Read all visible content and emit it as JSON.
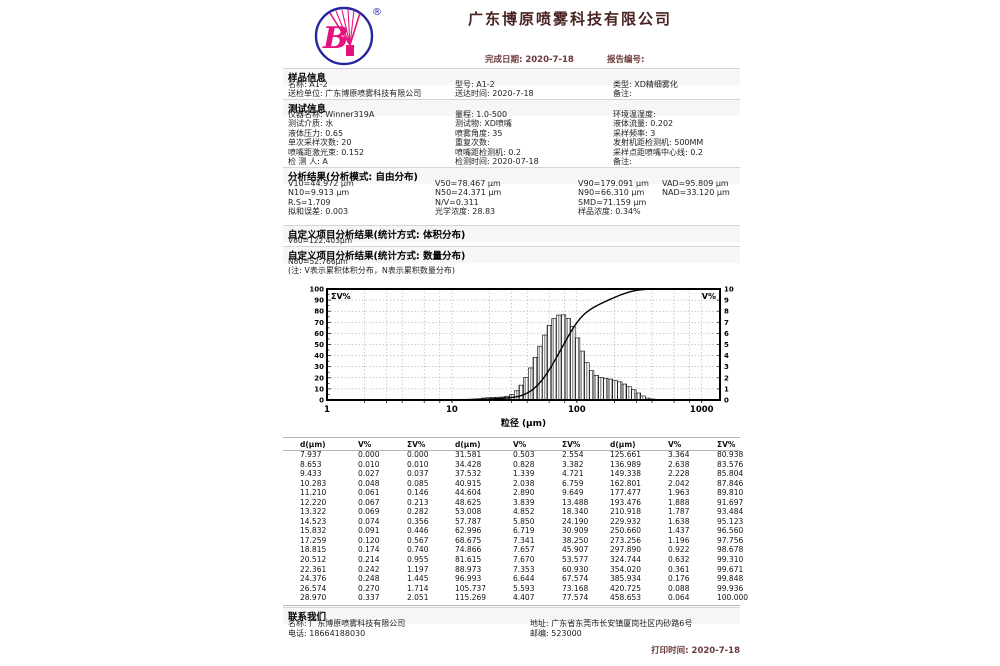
{
  "header": {
    "company": "广东博原喷雾科技有限公司",
    "registered_mark": "®",
    "logo_letter": "B",
    "complete_date": "完成日期: 2020-7-18",
    "report_no": "报告编号:"
  },
  "colors": {
    "logo_blue": "#2525a0",
    "logo_pink": "#e5127d",
    "title_red": "#4a2323"
  },
  "sample": {
    "title": "样品信息",
    "rows": [
      [
        "名称: A1-2",
        "型号: A1-2",
        "类型: XD精细雾化"
      ],
      [
        "送检单位: 广东博原喷雾科技有限公司",
        "送达时间: 2020-7-18",
        "备注:"
      ]
    ]
  },
  "test": {
    "title": "测试信息",
    "rows": [
      [
        "仪器名称: Winner319A",
        "量程: 1.0-500",
        "环境温湿度:"
      ],
      [
        "测试介质: 水",
        "测试物: XD喷嘴",
        "液体流量: 0.202"
      ],
      [
        "液体压力: 0.65",
        "喷雾角度: 35",
        "采样频率: 3"
      ],
      [
        "单次采样次数: 20",
        "重复次数:",
        "发射机距检测机: 500MM"
      ],
      [
        "喷嘴距激光束: 0.152",
        "喷嘴距检测机: 0.2",
        "采样点距喷嘴中心线: 0.2"
      ],
      [
        "检 测 人: A",
        "检测时间: 2020-07-18",
        "备注:"
      ]
    ]
  },
  "analysis": {
    "title": "分析结果(分析模式: 自由分布)",
    "rows": [
      [
        "V10=44.972 µm",
        "V50=78.467 µm",
        "V90=179.091 µm",
        "VAD=95.809 µm"
      ],
      [
        "N10=9.913 µm",
        "N50=24.371 µm",
        "N90=66.310 µm",
        "NAD=33.120 µm"
      ],
      [
        "R.S=1.709",
        "N/V=0.311",
        "SMD=71.159 µm",
        ""
      ],
      [
        "拟和误差: 0.003",
        "光学浓度: 28.83",
        "样品浓度: 0.34%",
        ""
      ]
    ]
  },
  "custom_volume": {
    "title": "自定义项目分析结果(统计方式: 体积分布)",
    "value": "V80=122.403µm"
  },
  "custom_number": {
    "title": "自定义项目分析结果(统计方式: 数量分布)",
    "value": "N80=52.766µm"
  },
  "note": "(注: V表示累积体积分布，N表示累积数量分布)",
  "chart_data": {
    "type": "histogram+cumulative-line",
    "title": "",
    "xlabel": "粒径 (µm)",
    "left_axis_label": "ΣV%",
    "right_axis_label": "V%",
    "left_ylim": [
      0,
      100
    ],
    "right_ylim": [
      0,
      10
    ],
    "x_scale": "log",
    "xlim": [
      1,
      1400
    ],
    "x_ticks": [
      1,
      10,
      100,
      1000
    ],
    "grid": true,
    "d_um": [
      7.937,
      8.653,
      9.433,
      10.283,
      11.21,
      12.22,
      13.322,
      14.523,
      15.832,
      17.259,
      18.815,
      20.512,
      22.361,
      24.376,
      26.574,
      28.97,
      31.581,
      34.428,
      37.532,
      40.915,
      44.604,
      48.625,
      53.008,
      57.787,
      62.996,
      68.675,
      74.866,
      81.615,
      88.973,
      96.993,
      105.737,
      115.269,
      125.661,
      136.989,
      149.338,
      162.801,
      177.477,
      193.476,
      210.918,
      229.932,
      250.66,
      273.256,
      297.89,
      324.744,
      354.02,
      385.934,
      420.725,
      458.653
    ],
    "v_pct": [
      0.0,
      0.01,
      0.027,
      0.048,
      0.061,
      0.067,
      0.069,
      0.074,
      0.091,
      0.12,
      0.174,
      0.214,
      0.242,
      0.248,
      0.27,
      0.337,
      0.503,
      0.828,
      1.339,
      2.038,
      2.89,
      3.839,
      4.852,
      5.85,
      6.719,
      7.341,
      7.657,
      7.67,
      7.353,
      6.644,
      5.593,
      4.407,
      3.364,
      2.638,
      2.228,
      2.042,
      1.963,
      1.888,
      1.787,
      1.638,
      1.437,
      1.196,
      0.922,
      0.632,
      0.361,
      0.176,
      0.088,
      0.064
    ],
    "cum_v_pct": [
      0.0,
      0.01,
      0.037,
      0.085,
      0.146,
      0.213,
      0.282,
      0.356,
      0.446,
      0.567,
      0.74,
      0.955,
      1.197,
      1.445,
      1.714,
      2.051,
      2.554,
      3.382,
      4.721,
      6.759,
      9.649,
      13.488,
      18.34,
      24.19,
      30.909,
      38.25,
      45.907,
      53.577,
      60.93,
      67.574,
      73.168,
      77.574,
      80.938,
      83.576,
      85.804,
      87.846,
      89.81,
      91.697,
      93.484,
      95.123,
      96.56,
      97.756,
      98.678,
      99.31,
      99.671,
      99.848,
      99.936,
      100.0
    ]
  },
  "table": {
    "headers": [
      "d(µm)",
      "V%",
      "ΣV%"
    ],
    "groups": 3,
    "rows_per_group": 16
  },
  "contact": {
    "title": "联系我们",
    "rows": [
      [
        "名称: 广东博原喷雾科技有限公司",
        "地址: 广东省东莞市长安镇厦岗社区内砂路6号"
      ],
      [
        "电话: 18664188030",
        "邮编: 523000"
      ]
    ]
  },
  "footer": {
    "print_time": "打印时间: 2020-7-18"
  }
}
